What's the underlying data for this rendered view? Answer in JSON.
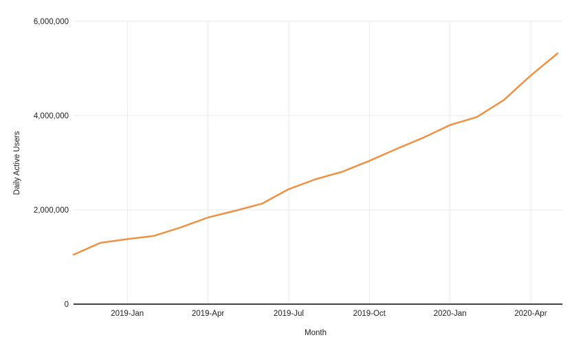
{
  "chart_data": {
    "type": "line",
    "title": "",
    "xlabel": "Month",
    "ylabel": "Daily Active Users",
    "x": [
      "2018-Nov",
      "2018-Dec",
      "2019-Jan",
      "2019-Feb",
      "2019-Mar",
      "2019-Apr",
      "2019-May",
      "2019-Jun",
      "2019-Jul",
      "2019-Aug",
      "2019-Sep",
      "2019-Oct",
      "2019-Nov",
      "2019-Dec",
      "2020-Jan",
      "2020-Feb",
      "2020-Mar",
      "2020-Apr",
      "2020-May"
    ],
    "series": [
      {
        "name": "Daily Active Users",
        "values": [
          1050000,
          1300000,
          1380000,
          1450000,
          1630000,
          1840000,
          1980000,
          2130000,
          2440000,
          2650000,
          2810000,
          3040000,
          3290000,
          3530000,
          3800000,
          3970000,
          4330000,
          4850000,
          5320000
        ]
      }
    ],
    "x_tick_labels": [
      "2019-Jan",
      "2019-Apr",
      "2019-Jul",
      "2019-Oct",
      "2020-Jan",
      "2020-Apr"
    ],
    "y_ticks": [
      0,
      2000000,
      4000000,
      6000000
    ],
    "ylim": [
      0,
      6000000
    ],
    "grid": true,
    "legend": "none",
    "colors": {
      "line": "#ED9144",
      "grid": "#E9E9E9",
      "axis": "#424242",
      "text": "#212121"
    }
  }
}
